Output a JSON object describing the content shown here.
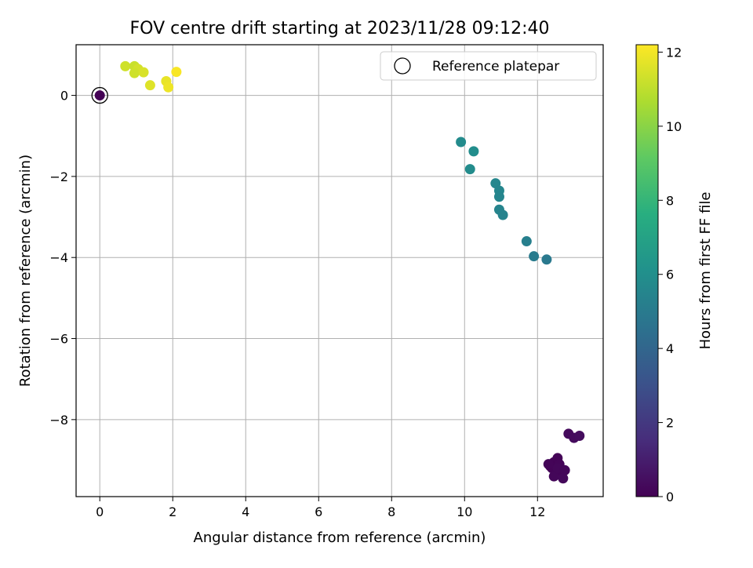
{
  "chart_data": {
    "type": "scatter",
    "title": "FOV centre drift starting at 2023/11/28 09:12:40",
    "xlabel": "Angular distance from reference (arcmin)",
    "ylabel": "Rotation from reference (arcmin)",
    "xlim": [
      -0.65,
      13.8
    ],
    "ylim": [
      -9.9,
      1.25
    ],
    "xticks": [
      0,
      2,
      4,
      6,
      8,
      10,
      12
    ],
    "yticks": [
      0,
      -2,
      -4,
      -6,
      -8
    ],
    "grid": true,
    "legend_position": "top-right",
    "legend": [
      "Reference platepar"
    ],
    "colorbar": {
      "label": "Hours from first FF file",
      "range": [
        0,
        12.2
      ],
      "ticks": [
        0,
        2,
        4,
        6,
        8,
        10,
        12
      ],
      "colormap": "viridis"
    },
    "reference_point": {
      "x": 0,
      "y": 0,
      "hours": 0.05
    },
    "points": [
      {
        "x": 12.45,
        "y": -9.05,
        "hours": 0.1
      },
      {
        "x": 12.55,
        "y": -8.95,
        "hours": 0.1
      },
      {
        "x": 12.6,
        "y": -9.1,
        "hours": 0.15
      },
      {
        "x": 12.4,
        "y": -9.2,
        "hours": 0.1
      },
      {
        "x": 12.65,
        "y": -9.25,
        "hours": 0.2
      },
      {
        "x": 12.5,
        "y": -9.3,
        "hours": 0.15
      },
      {
        "x": 12.45,
        "y": -9.4,
        "hours": 0.2
      },
      {
        "x": 12.7,
        "y": -9.45,
        "hours": 0.25
      },
      {
        "x": 12.35,
        "y": -9.15,
        "hours": 0.1
      },
      {
        "x": 12.55,
        "y": -9.2,
        "hours": 0.2
      },
      {
        "x": 12.3,
        "y": -9.1,
        "hours": 0.15
      },
      {
        "x": 12.75,
        "y": -9.25,
        "hours": 0.2
      },
      {
        "x": 12.85,
        "y": -8.35,
        "hours": 0.3
      },
      {
        "x": 13.0,
        "y": -8.45,
        "hours": 0.35
      },
      {
        "x": 13.15,
        "y": -8.4,
        "hours": 0.4
      },
      {
        "x": 9.9,
        "y": -1.15,
        "hours": 5.8
      },
      {
        "x": 10.25,
        "y": -1.38,
        "hours": 5.9
      },
      {
        "x": 10.15,
        "y": -1.82,
        "hours": 5.85
      },
      {
        "x": 10.85,
        "y": -2.17,
        "hours": 5.6
      },
      {
        "x": 10.95,
        "y": -2.35,
        "hours": 5.55
      },
      {
        "x": 10.95,
        "y": -2.5,
        "hours": 5.5
      },
      {
        "x": 10.95,
        "y": -2.82,
        "hours": 5.45
      },
      {
        "x": 11.05,
        "y": -2.95,
        "hours": 5.4
      },
      {
        "x": 11.7,
        "y": -3.6,
        "hours": 5.2
      },
      {
        "x": 11.9,
        "y": -3.97,
        "hours": 5.0
      },
      {
        "x": 12.25,
        "y": -4.05,
        "hours": 4.9
      },
      {
        "x": 0.7,
        "y": 0.72,
        "hours": 11.3
      },
      {
        "x": 0.95,
        "y": 0.72,
        "hours": 11.2
      },
      {
        "x": 1.05,
        "y": 0.65,
        "hours": 11.4
      },
      {
        "x": 0.95,
        "y": 0.55,
        "hours": 11.3
      },
      {
        "x": 1.2,
        "y": 0.57,
        "hours": 11.5
      },
      {
        "x": 1.38,
        "y": 0.25,
        "hours": 11.6
      },
      {
        "x": 1.82,
        "y": 0.35,
        "hours": 11.8
      },
      {
        "x": 1.88,
        "y": 0.2,
        "hours": 11.9
      },
      {
        "x": 2.1,
        "y": 0.58,
        "hours": 12.1
      }
    ]
  }
}
